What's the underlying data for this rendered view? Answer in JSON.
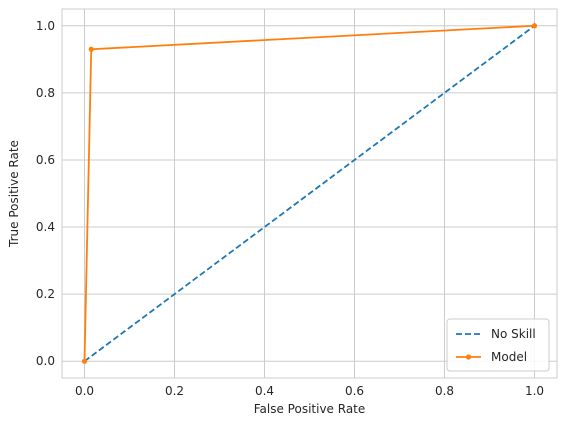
{
  "chart_data": {
    "type": "line",
    "title": "",
    "xlabel": "False Positive Rate",
    "ylabel": "True Positive Rate",
    "xlim": [
      -0.05,
      1.05
    ],
    "ylim": [
      -0.05,
      1.05
    ],
    "x_ticks": [
      "0.0",
      "0.2",
      "0.4",
      "0.6",
      "0.8",
      "1.0"
    ],
    "y_ticks": [
      "0.0",
      "0.2",
      "0.4",
      "0.6",
      "0.8",
      "1.0"
    ],
    "grid": true,
    "legend_position": "bottom-right",
    "series": [
      {
        "name": "No Skill",
        "style": "dashed",
        "color": "#1f77b4",
        "x": [
          0.0,
          1.0
        ],
        "y": [
          0.0,
          1.0
        ]
      },
      {
        "name": "Model",
        "style": "solid-with-dots",
        "color": "#ff7f0e",
        "x": [
          0.0,
          0.015,
          1.0
        ],
        "y": [
          0.0,
          0.93,
          1.0
        ]
      }
    ]
  }
}
